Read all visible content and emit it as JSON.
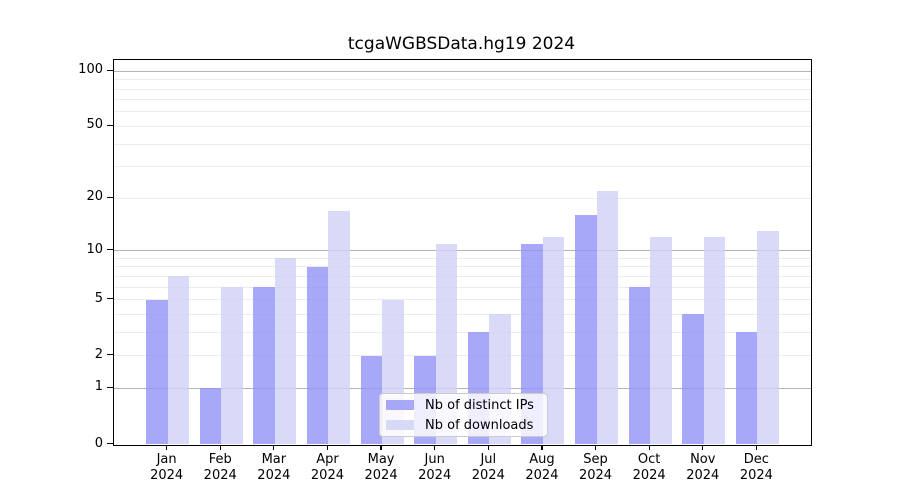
{
  "chart_title": "tcgaWGBSData.hg19 2024",
  "chart_data": {
    "type": "bar",
    "title": "tcgaWGBSData.hg19 2024",
    "categories": [
      "Jan",
      "Feb",
      "Mar",
      "Apr",
      "May",
      "Jun",
      "Jul",
      "Aug",
      "Sep",
      "Oct",
      "Nov",
      "Dec"
    ],
    "year_label": "2024",
    "series": [
      {
        "name": "Nb of distinct IPs",
        "color": "rgba(146,146,246,0.8)",
        "values": [
          5,
          1,
          6,
          8,
          2,
          2,
          3,
          11,
          16,
          6,
          4,
          3
        ]
      },
      {
        "name": "Nb of downloads",
        "color": "rgba(208,208,246,0.8)",
        "values": [
          7,
          6,
          9,
          17,
          5,
          11,
          4,
          12,
          22,
          12,
          12,
          13
        ]
      }
    ],
    "xlabel": "",
    "ylabel": "",
    "yscale": "log1p",
    "ylim": [
      0,
      115
    ],
    "yticks": [
      0,
      1,
      2,
      5,
      10,
      20,
      50,
      100
    ],
    "major_gridlines": [
      1,
      10,
      100
    ],
    "minor_gridlines": [
      2,
      3,
      4,
      5,
      6,
      7,
      8,
      9,
      20,
      30,
      40,
      50,
      60,
      70,
      80,
      90
    ],
    "grid": true,
    "legend_position": "lower center",
    "grid_colors": {
      "major": "#b3b3b3",
      "minor": "#ececec"
    },
    "spine_color": "#000000",
    "text_color": "#000000"
  }
}
